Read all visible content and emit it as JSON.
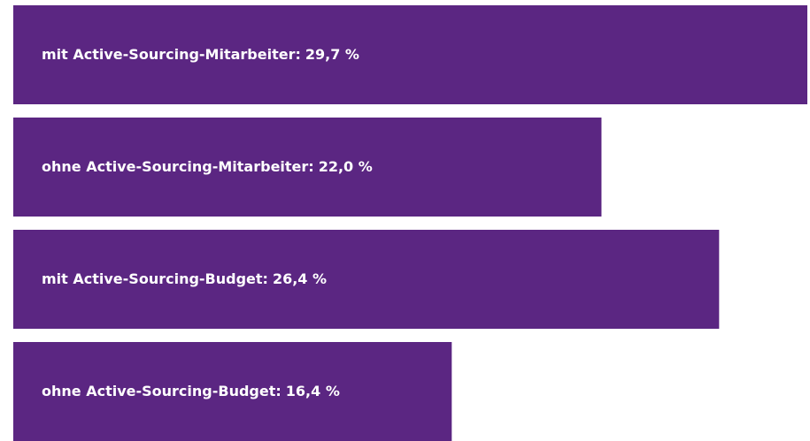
{
  "chart_data": {
    "type": "bar",
    "orientation": "horizontal",
    "color": "#5b2682",
    "categories": [
      "mit Active-Sourcing-Mitarbeiter:",
      "ohne Active-Sourcing-Mitarbeiter:",
      "mit Active-Sourcing-Budget:",
      "ohne Active-Sourcing-Budget:"
    ],
    "values": [
      29.7,
      22.0,
      26.4,
      16.4
    ],
    "value_labels": [
      "29,7 %",
      "22,0 %",
      "26,4 %",
      "16,4 %"
    ]
  }
}
